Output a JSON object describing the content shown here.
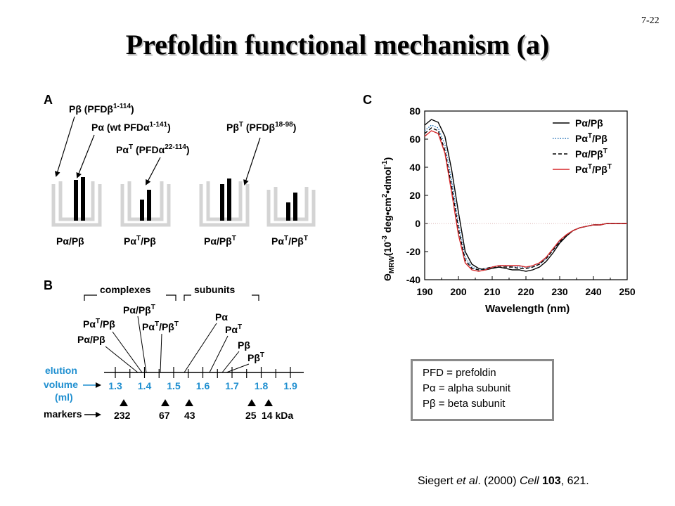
{
  "slide": {
    "number": "7-22",
    "title": "Prefoldin functional mechanism (a)"
  },
  "panel_a": {
    "label": "A",
    "annotations": {
      "pb": "Pβ (PFDβ",
      "pb_sup": "1-114",
      "pa": "Pα (wt PFDα",
      "pa_sup": "1-141",
      "pat_pre": "Pα",
      "pat_sup1": "T",
      "pat_mid": " (PFDα",
      "pat_sup2": "22-114",
      "pbt_pre": "Pβ",
      "pbt_sup1": "T",
      "pbt_mid": " (PFDβ",
      "pbt_sup2": "18-98"
    },
    "complexes": [
      {
        "label": "Pα/Pβ",
        "sup": ""
      },
      {
        "label": "Pα",
        "sup": "T",
        "rest": "/Pβ"
      },
      {
        "label": "Pα/Pβ",
        "sup": "T"
      },
      {
        "label": "Pα",
        "sup": "T",
        "rest": "/Pβ",
        "sup2": "T"
      }
    ]
  },
  "panel_b": {
    "label": "B",
    "group_complexes": "complexes",
    "group_subunits": "subunits",
    "peaks": {
      "pa_pbt": "Pα/Pβ",
      "pat_pb": "Pα",
      "pa_pb": "Pα/Pβ",
      "pat_pbt": "Pα",
      "pa": "Pα",
      "pat": "Pα",
      "pb": "Pβ",
      "pbt": "Pβ",
      "sup_t": "T",
      "rest_pb": "/Pβ"
    },
    "axis_label_lines": [
      "elution",
      "volume",
      "(ml)"
    ],
    "elution_ticks": [
      "1.3",
      "1.4",
      "1.5",
      "1.6",
      "1.7",
      "1.8",
      "1.9"
    ],
    "markers_label": "markers",
    "markers": [
      "232",
      "67",
      "43",
      "25",
      "14 kDa"
    ]
  },
  "chart_data": {
    "type": "line",
    "panel_label": "C",
    "xlabel": "Wavelength (nm)",
    "ylabel_parts": {
      "theta": "Θ",
      "sub": "MRW",
      "rest": "(10",
      "exp": "-3",
      "unit": " deg•cm",
      "exp2": "2",
      "unit2": "•dmol",
      "exp3": "-1",
      "close": ")"
    },
    "xlim": [
      190,
      250
    ],
    "ylim": [
      -40,
      80
    ],
    "x_ticks": [
      "190",
      "200",
      "210",
      "220",
      "230",
      "240",
      "250"
    ],
    "y_ticks": [
      "80",
      "60",
      "40",
      "20",
      "0",
      "-20",
      "-40"
    ],
    "zero_line": true,
    "legend_position": "top-right",
    "series": [
      {
        "name": "Pα/Pβ",
        "color": "#000000",
        "dash": "solid",
        "x": [
          190,
          192,
          194,
          196,
          198,
          200,
          202,
          204,
          206,
          208,
          210,
          212,
          214,
          216,
          218,
          220,
          222,
          224,
          226,
          228,
          230,
          232,
          234,
          236,
          238,
          240,
          242,
          244,
          246,
          248,
          250
        ],
        "y": [
          70,
          74,
          72,
          62,
          38,
          8,
          -20,
          -29,
          -32,
          -33,
          -32,
          -31,
          -32,
          -33,
          -33,
          -34,
          -33,
          -31,
          -27,
          -21,
          -14,
          -9,
          -5,
          -3,
          -2,
          -1,
          -1,
          0,
          0,
          0,
          0
        ]
      },
      {
        "name": "Pα/Pβ",
        "sup_name": "T",
        "color": "#1f6fb5",
        "dash": "dotted",
        "x": [
          190,
          192,
          194,
          196,
          198,
          200,
          202,
          204,
          206,
          208,
          210,
          212,
          214,
          216,
          218,
          220,
          222,
          224,
          226,
          228,
          230,
          232,
          234,
          236,
          238,
          240,
          242,
          244,
          246,
          248,
          250
        ],
        "y": [
          66,
          70,
          68,
          56,
          30,
          0,
          -24,
          -31,
          -33,
          -32,
          -31,
          -30,
          -30,
          -31,
          -31,
          -31,
          -31,
          -29,
          -25,
          -19,
          -13,
          -8,
          -5,
          -3,
          -2,
          -1,
          -1,
          0,
          0,
          0,
          0
        ]
      },
      {
        "name": "Pα/Pβ",
        "sup_name2": "T",
        "color": "#000000",
        "dash": "dashed",
        "x": [
          190,
          192,
          194,
          196,
          198,
          200,
          202,
          204,
          206,
          208,
          210,
          212,
          214,
          216,
          218,
          220,
          222,
          224,
          226,
          228,
          230,
          232,
          234,
          236,
          238,
          240,
          242,
          244,
          246,
          248,
          250
        ],
        "y": [
          64,
          68,
          66,
          52,
          26,
          -4,
          -26,
          -32,
          -33,
          -32,
          -31,
          -31,
          -31,
          -31,
          -32,
          -32,
          -31,
          -29,
          -25,
          -19,
          -13,
          -8,
          -5,
          -3,
          -2,
          -1,
          -1,
          0,
          0,
          0,
          0
        ]
      },
      {
        "name": "Pα/Pβ",
        "sup_name": "T",
        "sup_name2": "T",
        "color": "#d62728",
        "dash": "solid",
        "x": [
          190,
          192,
          194,
          196,
          198,
          200,
          202,
          204,
          206,
          208,
          210,
          212,
          214,
          216,
          218,
          220,
          222,
          224,
          226,
          228,
          230,
          232,
          234,
          236,
          238,
          240,
          242,
          244,
          246,
          248,
          250
        ],
        "y": [
          62,
          66,
          64,
          50,
          22,
          -8,
          -28,
          -33,
          -34,
          -33,
          -31,
          -30,
          -30,
          -30,
          -30,
          -31,
          -30,
          -28,
          -24,
          -18,
          -12,
          -8,
          -5,
          -3,
          -2,
          -1,
          -1,
          0,
          0,
          0,
          0
        ]
      }
    ]
  },
  "legend_box": {
    "lines": [
      "PFD = prefoldin",
      "Pα = alpha subunit",
      "Pβ = beta subunit"
    ]
  },
  "citation": {
    "author": "Siegert ",
    "etal": "et al",
    "year": ". (2000) ",
    "journal": "Cell",
    "volume": "103",
    "pages": ", 621."
  }
}
